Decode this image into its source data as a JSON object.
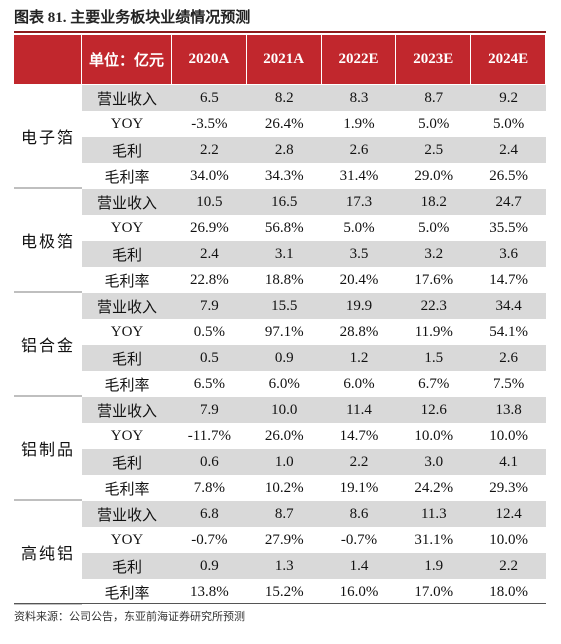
{
  "title": "图表 81. 主要业务板块业绩情况预测",
  "table": {
    "header": [
      "单位：亿元",
      "2020A",
      "2021A",
      "2022E",
      "2023E",
      "2024E"
    ],
    "groups": [
      {
        "name": "电子箔",
        "rows": [
          {
            "label": "营业收入",
            "values": [
              "6.5",
              "8.2",
              "8.3",
              "8.7",
              "9.2"
            ]
          },
          {
            "label": "YOY",
            "values": [
              "-3.5%",
              "26.4%",
              "1.9%",
              "5.0%",
              "5.0%"
            ]
          },
          {
            "label": "毛利",
            "values": [
              "2.2",
              "2.8",
              "2.6",
              "2.5",
              "2.4"
            ]
          },
          {
            "label": "毛利率",
            "values": [
              "34.0%",
              "34.3%",
              "31.4%",
              "29.0%",
              "26.5%"
            ]
          }
        ]
      },
      {
        "name": "电极箔",
        "rows": [
          {
            "label": "营业收入",
            "values": [
              "10.5",
              "16.5",
              "17.3",
              "18.2",
              "24.7"
            ]
          },
          {
            "label": "YOY",
            "values": [
              "26.9%",
              "56.8%",
              "5.0%",
              "5.0%",
              "35.5%"
            ]
          },
          {
            "label": "毛利",
            "values": [
              "2.4",
              "3.1",
              "3.5",
              "3.2",
              "3.6"
            ]
          },
          {
            "label": "毛利率",
            "values": [
              "22.8%",
              "18.8%",
              "20.4%",
              "17.6%",
              "14.7%"
            ]
          }
        ]
      },
      {
        "name": "铝合金",
        "rows": [
          {
            "label": "营业收入",
            "values": [
              "7.9",
              "15.5",
              "19.9",
              "22.3",
              "34.4"
            ]
          },
          {
            "label": "YOY",
            "values": [
              "0.5%",
              "97.1%",
              "28.8%",
              "11.9%",
              "54.1%"
            ]
          },
          {
            "label": "毛利",
            "values": [
              "0.5",
              "0.9",
              "1.2",
              "1.5",
              "2.6"
            ]
          },
          {
            "label": "毛利率",
            "values": [
              "6.5%",
              "6.0%",
              "6.0%",
              "6.7%",
              "7.5%"
            ]
          }
        ]
      },
      {
        "name": "铝制品",
        "rows": [
          {
            "label": "营业收入",
            "values": [
              "7.9",
              "10.0",
              "11.4",
              "12.6",
              "13.8"
            ]
          },
          {
            "label": "YOY",
            "values": [
              "-11.7%",
              "26.0%",
              "14.7%",
              "10.0%",
              "10.0%"
            ]
          },
          {
            "label": "毛利",
            "values": [
              "0.6",
              "1.0",
              "2.2",
              "3.0",
              "4.1"
            ]
          },
          {
            "label": "毛利率",
            "values": [
              "7.8%",
              "10.2%",
              "19.1%",
              "24.2%",
              "29.3%"
            ]
          }
        ]
      },
      {
        "name": "高纯铝",
        "rows": [
          {
            "label": "营业收入",
            "values": [
              "6.8",
              "8.7",
              "8.6",
              "11.3",
              "12.4"
            ]
          },
          {
            "label": "YOY",
            "values": [
              "-0.7%",
              "27.9%",
              "-0.7%",
              "31.1%",
              "10.0%"
            ]
          },
          {
            "label": "毛利",
            "values": [
              "0.9",
              "1.3",
              "1.4",
              "1.9",
              "2.2"
            ]
          },
          {
            "label": "毛利率",
            "values": [
              "13.8%",
              "15.2%",
              "16.0%",
              "17.0%",
              "18.0%"
            ]
          }
        ]
      }
    ]
  },
  "source": "资料来源：公司公告，东亚前海证券研究所预测"
}
